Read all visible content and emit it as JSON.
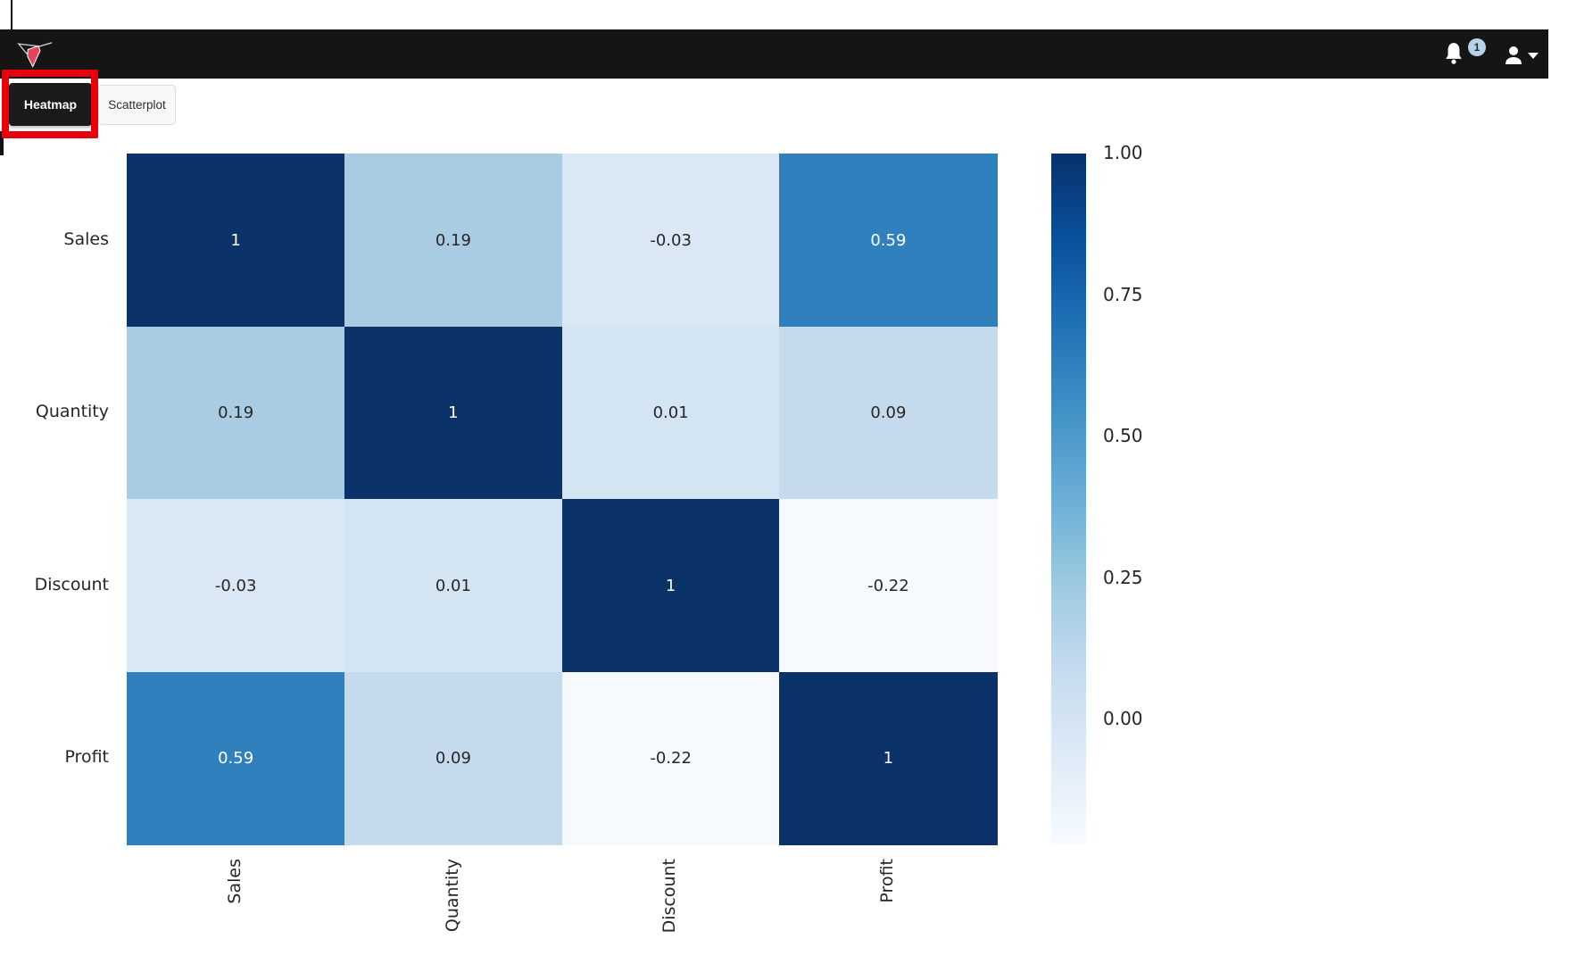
{
  "header": {
    "logo": "hummingbird-logo",
    "notification_badge_count": "1"
  },
  "tabs": [
    {
      "label": "Heatmap",
      "active": true,
      "highlighted": true
    },
    {
      "label": "Scatterplot",
      "active": false,
      "highlighted": false
    }
  ],
  "annotation": {
    "type": "highlight-box",
    "target": "Heatmap tab",
    "color": "#e8000b"
  },
  "chart_data": {
    "type": "heatmap",
    "title": "",
    "categories": [
      "Sales",
      "Quantity",
      "Discount",
      "Profit"
    ],
    "matrix": [
      [
        1,
        0.19,
        -0.03,
        0.59
      ],
      [
        0.19,
        1,
        0.01,
        0.09
      ],
      [
        -0.03,
        0.01,
        1,
        -0.22
      ],
      [
        0.59,
        0.09,
        -0.22,
        1
      ]
    ],
    "cell_labels": [
      [
        "1",
        "0.19",
        "-0.03",
        "0.59"
      ],
      [
        "0.19",
        "1",
        "0.01",
        "0.09"
      ],
      [
        "-0.03",
        "0.01",
        "1",
        "-0.22"
      ],
      [
        "0.59",
        "0.09",
        "-0.22",
        "1"
      ]
    ],
    "cell_colors": [
      [
        "#0b3269",
        "#a9cce3",
        "#dae7f4",
        "#3080bd"
      ],
      [
        "#a9cce3",
        "#0b3269",
        "#d3e4f3",
        "#c6daee"
      ],
      [
        "#dae7f4",
        "#d3e4f3",
        "#0b3269",
        "#f6fafe"
      ],
      [
        "#3080bd",
        "#c6daee",
        "#f6fafe",
        "#0b3269"
      ]
    ],
    "cell_text_colors": [
      [
        "#ffffff",
        "#262626",
        "#262626",
        "#ffffff"
      ],
      [
        "#262626",
        "#ffffff",
        "#262626",
        "#262626"
      ],
      [
        "#262626",
        "#262626",
        "#ffffff",
        "#262626"
      ],
      [
        "#ffffff",
        "#262626",
        "#262626",
        "#ffffff"
      ]
    ],
    "colormap": "Blues",
    "vmin": -0.22,
    "vmax": 1.0,
    "grid": false,
    "legend_position": "right",
    "colorbar": {
      "ticks": [
        {
          "value": 1.0,
          "label": "1.00"
        },
        {
          "value": 0.75,
          "label": "0.75"
        },
        {
          "value": 0.5,
          "label": "0.50"
        },
        {
          "value": 0.25,
          "label": "0.25"
        },
        {
          "value": 0.0,
          "label": "0.00"
        }
      ],
      "gradient_top_to_bottom": [
        "#08306b",
        "#08519c",
        "#2171b5",
        "#4292c6",
        "#6baed6",
        "#9ecae1",
        "#c6dbef",
        "#deebf7",
        "#f7fbff"
      ]
    }
  },
  "colors": {
    "navbar_bg": "#151515",
    "active_tab_bg": "#1a1a1a",
    "inactive_tab_bg": "#f8f8f8",
    "annotation_red": "#e8000b",
    "badge_bg": "#b5d4ec",
    "badge_text": "#222b33",
    "logo_body": "#e8435e"
  }
}
